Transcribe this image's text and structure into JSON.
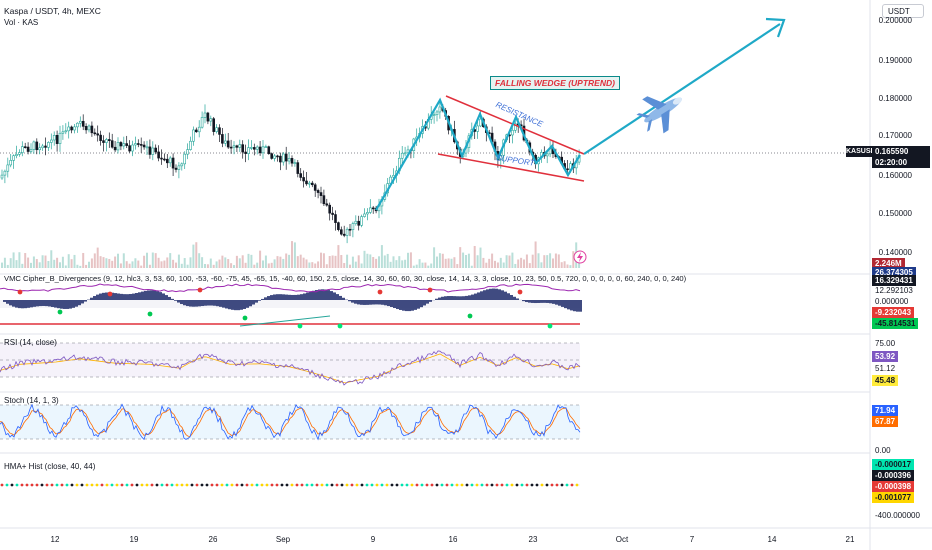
{
  "header": {
    "symbol_title": "Kaspa / USDT, 4h, MEXC",
    "volume_label": "Vol · KAS",
    "currency": "USDT"
  },
  "annotations": {
    "wedge_label": "FALLING WEDGE (UPTREND)",
    "resistance_label": "RESISTANCE",
    "support_label": "SUPPORT",
    "plane_icon": "airplane-icon",
    "lightning_icon": "lightning-icon"
  },
  "price_axis": {
    "ticks": [
      "0.200000",
      "0.190000",
      "0.180000",
      "0.170000",
      "0.160000",
      "0.150000",
      "0.140000"
    ],
    "symbol_tag": "KASUSDT",
    "last_price": "0.165590",
    "countdown": "02:20:00",
    "volume_value": "2.246M"
  },
  "indicators": {
    "vmc": {
      "label": "VMC Cipher_B_Divergences (9, 12, hlc3, 3, 53, 60, 100, -53, -60, -75, 45, -65, 15, -40, 60, 150, 2.5, close, 14, 30, 60, 60, 30, close, 14, 14, 3, 3, close, 10, 23, 50, 0.5, 720, 0, 0, 0, 0, 0, 60, 240, 0, 0, 240)",
      "values": [
        "26.374305",
        "16.329431",
        "12.292103",
        "0.000000",
        "-9.232043",
        "-45.814531"
      ]
    },
    "rsi": {
      "label": "RSI (14, close)",
      "values": [
        "75.00",
        "53.92",
        "51.12",
        "45.48"
      ]
    },
    "stoch": {
      "label": "Stoch (14, 1, 3)",
      "values": [
        "71.94",
        "67.87",
        "0.00"
      ]
    },
    "hma": {
      "label": "HMA+ Hist (close, 40, 44)",
      "values": [
        "-0.000017",
        "-0.000396",
        "-0.000398",
        "-0.001077",
        "-400.000000"
      ]
    }
  },
  "time_axis": [
    "12",
    "19",
    "26",
    "Sep",
    "9",
    "16",
    "23",
    "Oct",
    "7",
    "14",
    "21"
  ],
  "colors": {
    "up": "#26a69a",
    "down": "#131722",
    "wedge": "#e0303c",
    "arrow": "#1fa9c7",
    "rsi": "#7e57c2",
    "stoch_k": "#2962ff",
    "stoch_d": "#ff6d00"
  }
}
